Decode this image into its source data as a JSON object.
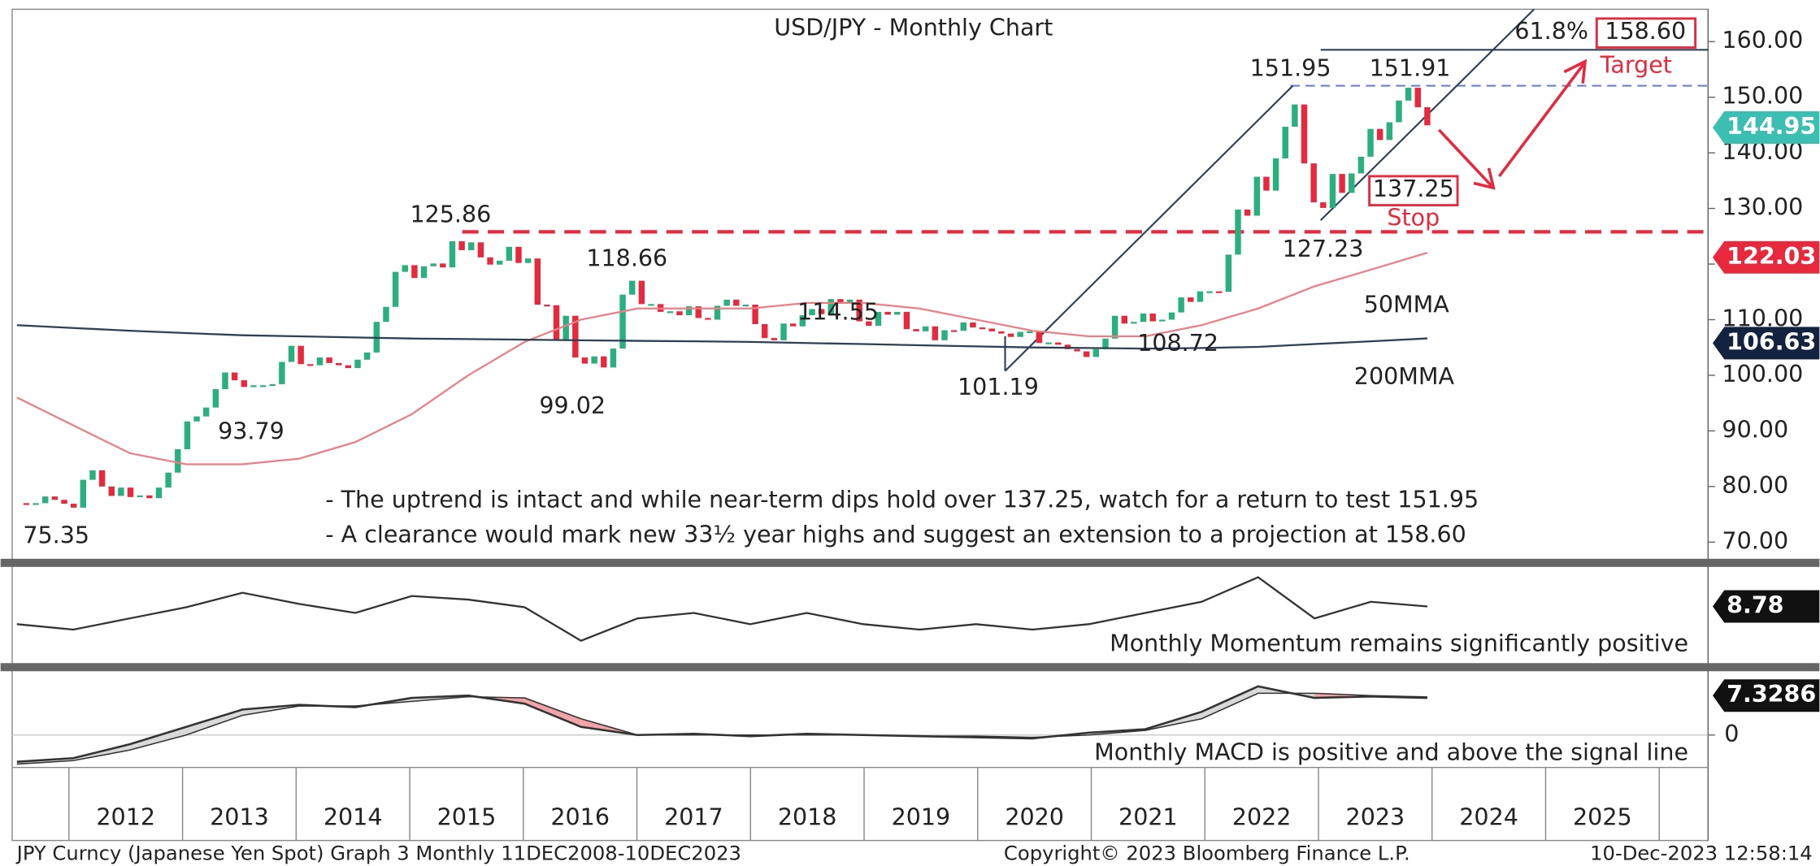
{
  "chart_data": [
    {
      "type": "candlestick",
      "title": "USD/JPY - Monthly Chart",
      "xlim": [
        2011.5,
        2026.43
      ],
      "xticks": [
        2012,
        2013,
        2014,
        2015,
        2016,
        2017,
        2018,
        2019,
        2020,
        2021,
        2022,
        2023,
        2024,
        2025
      ],
      "ylim": [
        67,
        165.4
      ],
      "yticks": [
        {
          "value": 70,
          "label": "70.00"
        },
        {
          "value": 80,
          "label": "80.00"
        },
        {
          "value": 90,
          "label": "90.00"
        },
        {
          "value": 100,
          "label": "100.00"
        },
        {
          "value": 110,
          "label": "110.00"
        },
        {
          "value": 120,
          "label": "120.00"
        },
        {
          "value": 130,
          "label": "130.00"
        },
        {
          "value": 140,
          "label": "140.00"
        },
        {
          "value": 150,
          "label": "150.00"
        },
        {
          "value": 160,
          "label": "160.00"
        }
      ],
      "up_color": "#29b07f",
      "down_color": "#e8283c",
      "values": [
        77.0,
        76.7,
        77.0,
        78.2,
        77.6,
        76.9,
        76.2,
        81.2,
        82.9,
        80.0,
        78.3,
        79.8,
        78.1,
        78.4,
        77.9,
        79.8,
        82.5,
        86.7,
        91.7,
        92.6,
        94.2,
        97.5,
        100.5,
        99.1,
        97.9,
        98.2,
        98.2,
        98.4,
        102.4,
        105.3,
        102.0,
        101.8,
        103.2,
        102.2,
        101.8,
        101.3,
        102.8,
        104.1,
        109.6,
        112.3,
        118.6,
        119.8,
        117.5,
        119.6,
        120.1,
        119.4,
        124.1,
        122.5,
        123.9,
        121.2,
        119.9,
        120.6,
        123.1,
        120.2,
        121.0,
        112.7,
        112.6,
        106.5,
        110.7,
        103.2,
        102.1,
        103.4,
        101.4,
        104.8,
        114.5,
        117.0,
        112.8,
        112.8,
        111.4,
        111.5,
        110.8,
        112.4,
        110.3,
        110.0,
        112.5,
        113.6,
        112.5,
        112.7,
        109.2,
        106.7,
        106.3,
        109.3,
        108.8,
        110.8,
        111.9,
        111.0,
        113.7,
        112.9,
        113.6,
        109.7,
        108.9,
        111.4,
        110.9,
        111.4,
        108.3,
        107.9,
        108.8,
        106.3,
        108.1,
        108.0,
        109.5,
        108.6,
        108.4,
        107.9,
        107.5,
        106.9,
        107.8,
        107.9,
        105.8,
        105.9,
        105.5,
        104.7,
        104.3,
        103.3,
        104.7,
        106.6,
        110.7,
        109.3,
        109.6,
        111.1,
        109.7,
        110.0,
        111.3,
        114.0,
        113.2,
        115.1,
        115.1,
        115.0,
        121.7,
        129.8,
        128.7,
        135.7,
        133.2,
        139.0,
        144.7,
        148.7,
        138.1,
        131.1,
        130.1,
        136.2,
        132.8,
        136.3,
        139.3,
        144.3,
        142.3,
        145.5,
        149.4,
        151.7,
        148.2,
        144.95
      ],
      "series": [
        {
          "name": "50MMA",
          "color": "#ec7f86",
          "values": [
            96,
            91,
            86,
            84,
            84,
            85,
            88,
            93,
            100,
            106,
            110,
            112,
            112,
            112,
            113,
            113,
            112,
            110,
            108,
            107,
            107,
            109,
            112,
            116,
            119,
            122.03
          ]
        },
        {
          "name": "200MMA",
          "color": "#2d4058",
          "values": [
            109,
            108.5,
            108,
            107.6,
            107.2,
            107,
            106.8,
            106.6,
            106.5,
            106.4,
            106.3,
            106.2,
            106.1,
            106,
            105.8,
            105.6,
            105.4,
            105.2,
            105,
            104.9,
            104.8,
            104.9,
            105.1,
            105.6,
            106.1,
            106.63
          ]
        }
      ],
      "annotations": [
        "75.35",
        "93.79",
        "125.86",
        "118.66",
        "99.02",
        "114.55",
        "101.19",
        "108.72",
        "151.95",
        "151.91",
        "127.23",
        "137.25",
        "Stop",
        "61.8%",
        "158.60",
        "Target"
      ],
      "notes": [
        "- The uptrend is intact and while near-term dips hold over 137.25, watch for a return to test 151.95",
        "- A clearance would mark new 33½ year highs and suggest an extension to a projection at 158.60"
      ],
      "tags": [
        "144.95",
        "122.03",
        "106.63"
      ]
    },
    {
      "type": "line",
      "caption": "Monthly Momentum remains significantly positive",
      "ylim": [
        -12,
        22
      ],
      "color": "#333333",
      "values": [
        2.3,
        0.3,
        4.4,
        8.5,
        13.8,
        9.7,
        6.4,
        12.6,
        11.3,
        8.5,
        -3.8,
        4.4,
        6.4,
        2.3,
        6.4,
        2.3,
        0.3,
        2.3,
        0.3,
        2.3,
        6.4,
        10.5,
        19.5,
        4.4,
        10.5,
        8.78
      ],
      "tag": "8.78"
    },
    {
      "type": "macd",
      "caption": "Monthly MACD is positive and above the signal line",
      "ylim": [
        -6.4,
        11.9
      ],
      "yticks": [
        0
      ],
      "color": "#333333",
      "values": [
        -5.27,
        -4.58,
        -1.83,
        1.6,
        5.04,
        5.95,
        5.5,
        7.33,
        7.79,
        6.18,
        1.6,
        0,
        0.23,
        -0.23,
        0.23,
        0,
        -0.23,
        -0.46,
        -0.69,
        0.46,
        1.15,
        4.58,
        9.62,
        7.33,
        7.6,
        7.33
      ],
      "signal": [
        -5.73,
        -5.04,
        -2.98,
        0,
        3.89,
        5.73,
        5.73,
        6.64,
        7.56,
        7.33,
        3.21,
        0,
        0,
        0,
        0,
        0,
        -0.23,
        -0.23,
        -0.46,
        0,
        0.92,
        3.21,
        8.24,
        8.24,
        7.79,
        7.5
      ],
      "tag": "7.3286"
    }
  ],
  "footer": {
    "left": "JPY Curncy (Japanese Yen Spot) Graph 3  Monthly 11DEC2008-10DEC2023",
    "center": "Copyright© 2023 Bloomberg Finance L.P.",
    "right": "10-Dec-2023 12:58:14"
  }
}
